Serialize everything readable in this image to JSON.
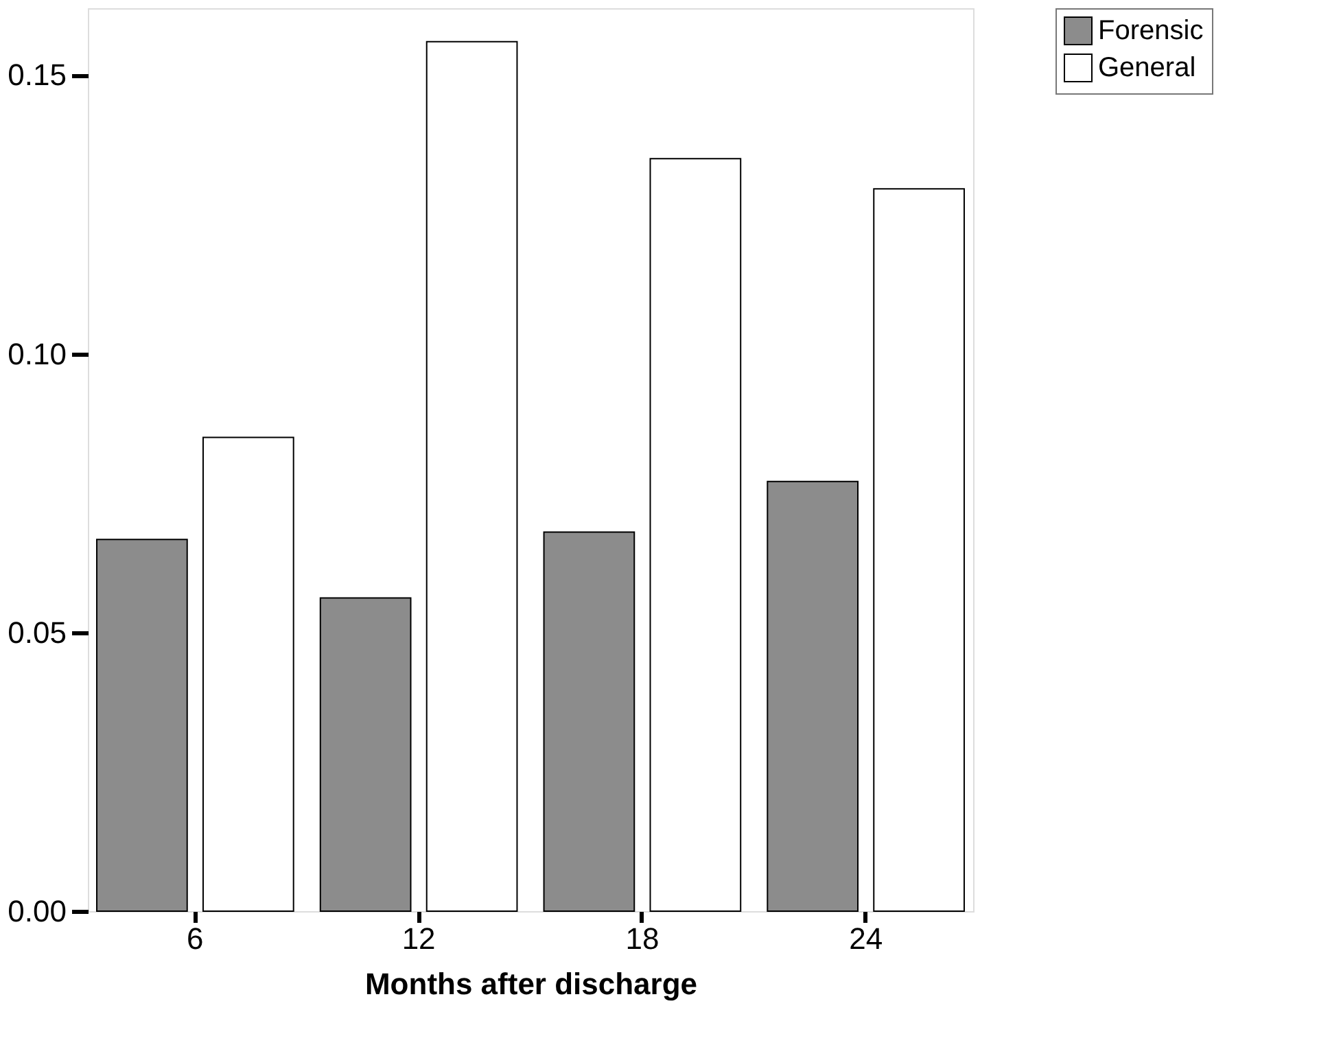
{
  "chart_data": {
    "type": "bar",
    "xlabel": "Months after discharge",
    "categories": [
      "6",
      "12",
      "18",
      "24"
    ],
    "series": [
      {
        "name": "Forensic",
        "color": "#8c8c8c",
        "values": [
          0.0667,
          0.0562,
          0.068,
          0.0771
        ]
      },
      {
        "name": "General",
        "color": "#ffffff",
        "values": [
          0.085,
          0.156,
          0.135,
          0.1296
        ]
      }
    ],
    "ylim": [
      0,
      0.162
    ],
    "yticks": [
      {
        "value": 0,
        "label": "0.00"
      },
      {
        "value": 0.05,
        "label": "0.05"
      },
      {
        "value": 0.1,
        "label": "0.10"
      },
      {
        "value": 0.15,
        "label": "0.15"
      }
    ],
    "grid": false,
    "legend": "top right"
  }
}
